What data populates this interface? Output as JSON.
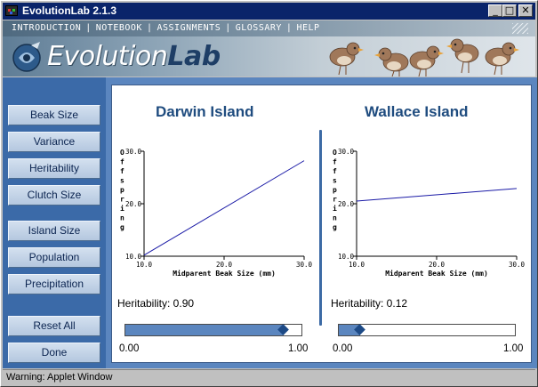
{
  "window": {
    "title": "EvolutionLab 2.1.3",
    "controls": {
      "minimize": "_",
      "maximize": "□",
      "close": "✕"
    }
  },
  "header": {
    "menu": [
      "INTRODUCTION",
      "NOTEBOOK",
      "ASSIGNMENTS",
      "GLOSSARY",
      "HELP"
    ],
    "logo_light": "Evolution",
    "logo_bold": "Lab"
  },
  "sidebar": {
    "buttons": [
      "Beak Size",
      "Variance",
      "Heritability",
      "Clutch Size",
      "Island Size",
      "Population",
      "Precipitation",
      "Reset All",
      "Done"
    ]
  },
  "islands": [
    {
      "name": "Darwin Island",
      "heritability_label": "Heritability: 0.90",
      "heritability": 0.9,
      "slider_min": "0.00",
      "slider_max": "1.00"
    },
    {
      "name": "Wallace Island",
      "heritability_label": "Heritability: 0.12",
      "heritability": 0.12,
      "slider_min": "0.00",
      "slider_max": "1.00"
    }
  ],
  "chart_data": [
    {
      "type": "line",
      "title": "Darwin Island",
      "xlabel": "Midparent Beak Size (mm)",
      "ylabel": "Offspring",
      "xlim": [
        10.0,
        30.0
      ],
      "ylim": [
        10.0,
        30.0
      ],
      "xticks": [
        "10.0",
        "20.0",
        "30.0"
      ],
      "yticks": [
        "10.0",
        "20.0",
        "30.0"
      ],
      "series": [
        {
          "x": [
            10.0,
            30.0
          ],
          "y": [
            10.2,
            28.2
          ],
          "color": "#1a1aa6"
        }
      ]
    },
    {
      "type": "line",
      "title": "Wallace Island",
      "xlabel": "Midparent Beak Size (mm)",
      "ylabel": "Offspring",
      "xlim": [
        10.0,
        30.0
      ],
      "ylim": [
        10.0,
        30.0
      ],
      "xticks": [
        "10.0",
        "20.0",
        "30.0"
      ],
      "yticks": [
        "10.0",
        "20.0",
        "30.0"
      ],
      "series": [
        {
          "x": [
            10.0,
            30.0
          ],
          "y": [
            20.5,
            22.9
          ],
          "color": "#1a1aa6"
        }
      ]
    }
  ],
  "status": {
    "text": "Warning: Applet Window"
  }
}
